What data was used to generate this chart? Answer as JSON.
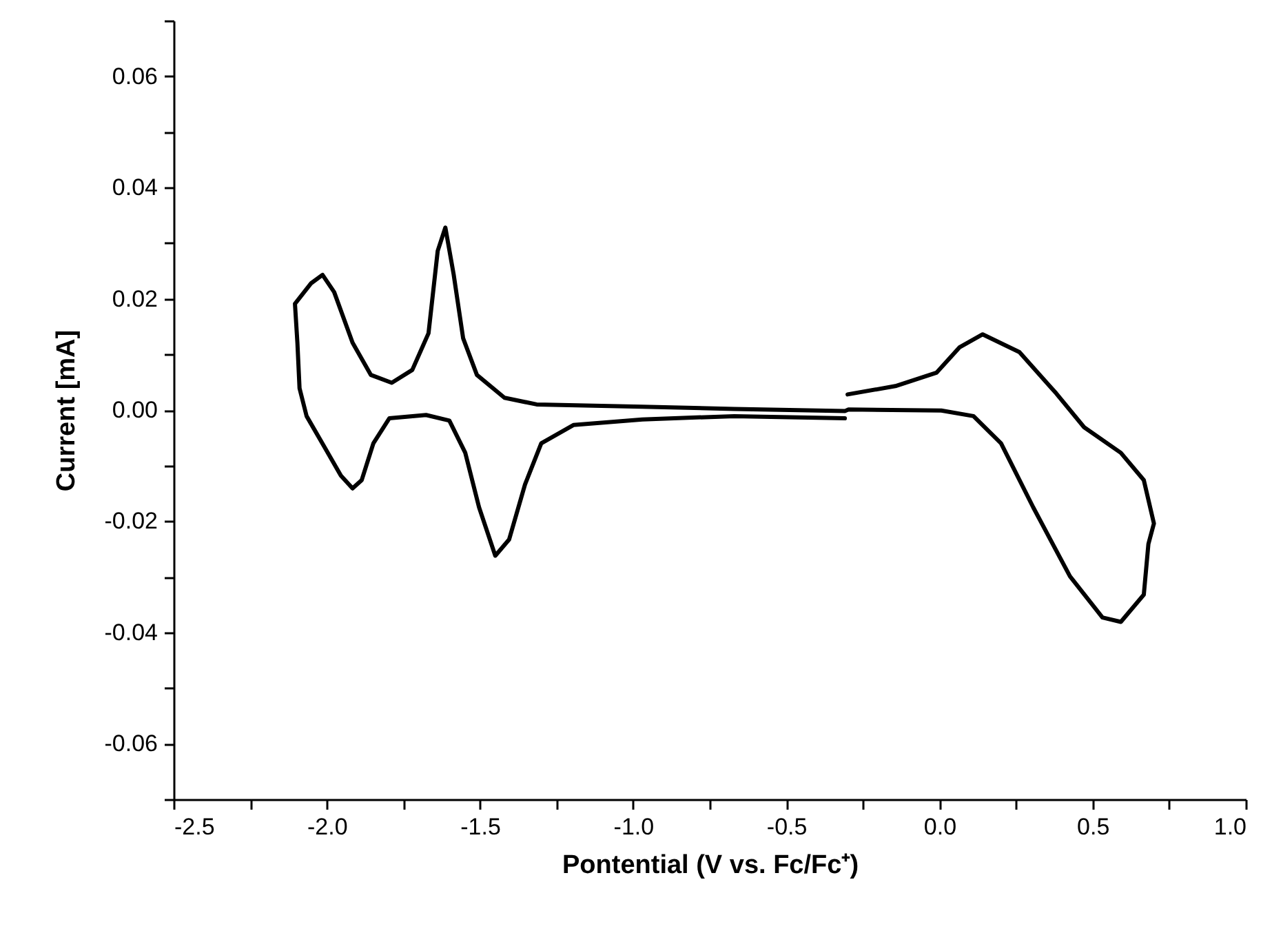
{
  "chart_data": {
    "type": "line",
    "xlabel": "Pontential (V vs. Fc/Fc⁺)",
    "ylabel": "Current [mA]",
    "xlim": [
      -2.5,
      1.0
    ],
    "ylim": [
      -0.07,
      0.07
    ],
    "xticks": [
      {
        "value": -2.5,
        "label": "-2.5"
      },
      {
        "value": -2.25,
        "label": null
      },
      {
        "value": -2.0,
        "label": "-2.0"
      },
      {
        "value": -1.75,
        "label": null
      },
      {
        "value": -1.5,
        "label": "-1.5"
      },
      {
        "value": -1.25,
        "label": null
      },
      {
        "value": -1.0,
        "label": "-1.0"
      },
      {
        "value": -0.75,
        "label": null
      },
      {
        "value": -0.5,
        "label": "-0.5"
      },
      {
        "value": -0.25,
        "label": null
      },
      {
        "value": 0,
        "label": "0.0"
      },
      {
        "value": 0.25,
        "label": null
      },
      {
        "value": 0.5,
        "label": "0.5"
      },
      {
        "value": 0.75,
        "label": null
      },
      {
        "value": 1.0,
        "label": "1.0"
      }
    ],
    "yticks": [
      {
        "value": -0.07,
        "label": null
      },
      {
        "value": -0.06,
        "label": "-0.06"
      },
      {
        "value": -0.05,
        "label": null
      },
      {
        "value": -0.04,
        "label": "-0.04"
      },
      {
        "value": -0.03,
        "label": null
      },
      {
        "value": -0.02,
        "label": "-0.02"
      },
      {
        "value": -0.01,
        "label": null
      },
      {
        "value": 0,
        "label": "0.00"
      },
      {
        "value": 0.01,
        "label": null
      },
      {
        "value": 0.02,
        "label": "0.02"
      },
      {
        "value": 0.03,
        "label": null
      },
      {
        "value": 0.04,
        "label": "0.04"
      },
      {
        "value": 0.05,
        "label": null
      },
      {
        "value": 0.06,
        "label": "0.06"
      },
      {
        "value": 0.07,
        "label": null
      }
    ],
    "grid": false,
    "series": [
      {
        "color": "#000000",
        "x": [
          -0.3,
          -0.144,
          -0.01,
          0.066,
          0.141,
          0.261,
          0.381,
          0.472,
          0.592,
          0.667,
          0.7,
          0.682,
          0.667,
          0.592,
          0.532,
          0.426,
          0.306,
          0.201,
          0.111,
          0.006,
          -0.297,
          -0.309,
          -0.67,
          -0.97,
          -1.315,
          -1.42,
          -1.51,
          -1.555,
          -1.586,
          -1.613,
          -1.638,
          -1.668,
          -1.721,
          -1.788,
          -1.856,
          -1.916,
          -1.976,
          -2.014,
          -2.051,
          -2.104,
          -2.096,
          -2.089,
          -2.066,
          -2.006,
          -1.954,
          -1.916,
          -1.886,
          -1.848,
          -1.796,
          -1.676,
          -1.6,
          -1.548,
          -1.503,
          -1.45,
          -1.405,
          -1.353,
          -1.3,
          -1.195,
          -0.97,
          -0.67,
          -0.309
        ],
        "values": [
          0.0028,
          0.0043,
          0.0067,
          0.0113,
          0.0136,
          0.0104,
          0.003,
          -0.0031,
          -0.0077,
          -0.0126,
          -0.0204,
          -0.0241,
          -0.0332,
          -0.0381,
          -0.0373,
          -0.0299,
          -0.0175,
          -0.006,
          -0.0011,
          -0.0001,
          0.0001,
          -0.0002,
          0.0002,
          0.0006,
          0.001,
          0.0022,
          0.0063,
          0.0129,
          0.0244,
          0.0328,
          0.0286,
          0.0138,
          0.0072,
          0.0049,
          0.0063,
          0.0121,
          0.0212,
          0.0243,
          0.0228,
          0.0191,
          0.0121,
          0.0039,
          -0.0011,
          -0.0068,
          -0.0118,
          -0.0141,
          -0.0126,
          -0.006,
          -0.0015,
          -0.0009,
          -0.0019,
          -0.0077,
          -0.0175,
          -0.0262,
          -0.0233,
          -0.0134,
          -0.006,
          -0.0027,
          -0.0017,
          -0.0011,
          -0.0015
        ]
      }
    ]
  }
}
